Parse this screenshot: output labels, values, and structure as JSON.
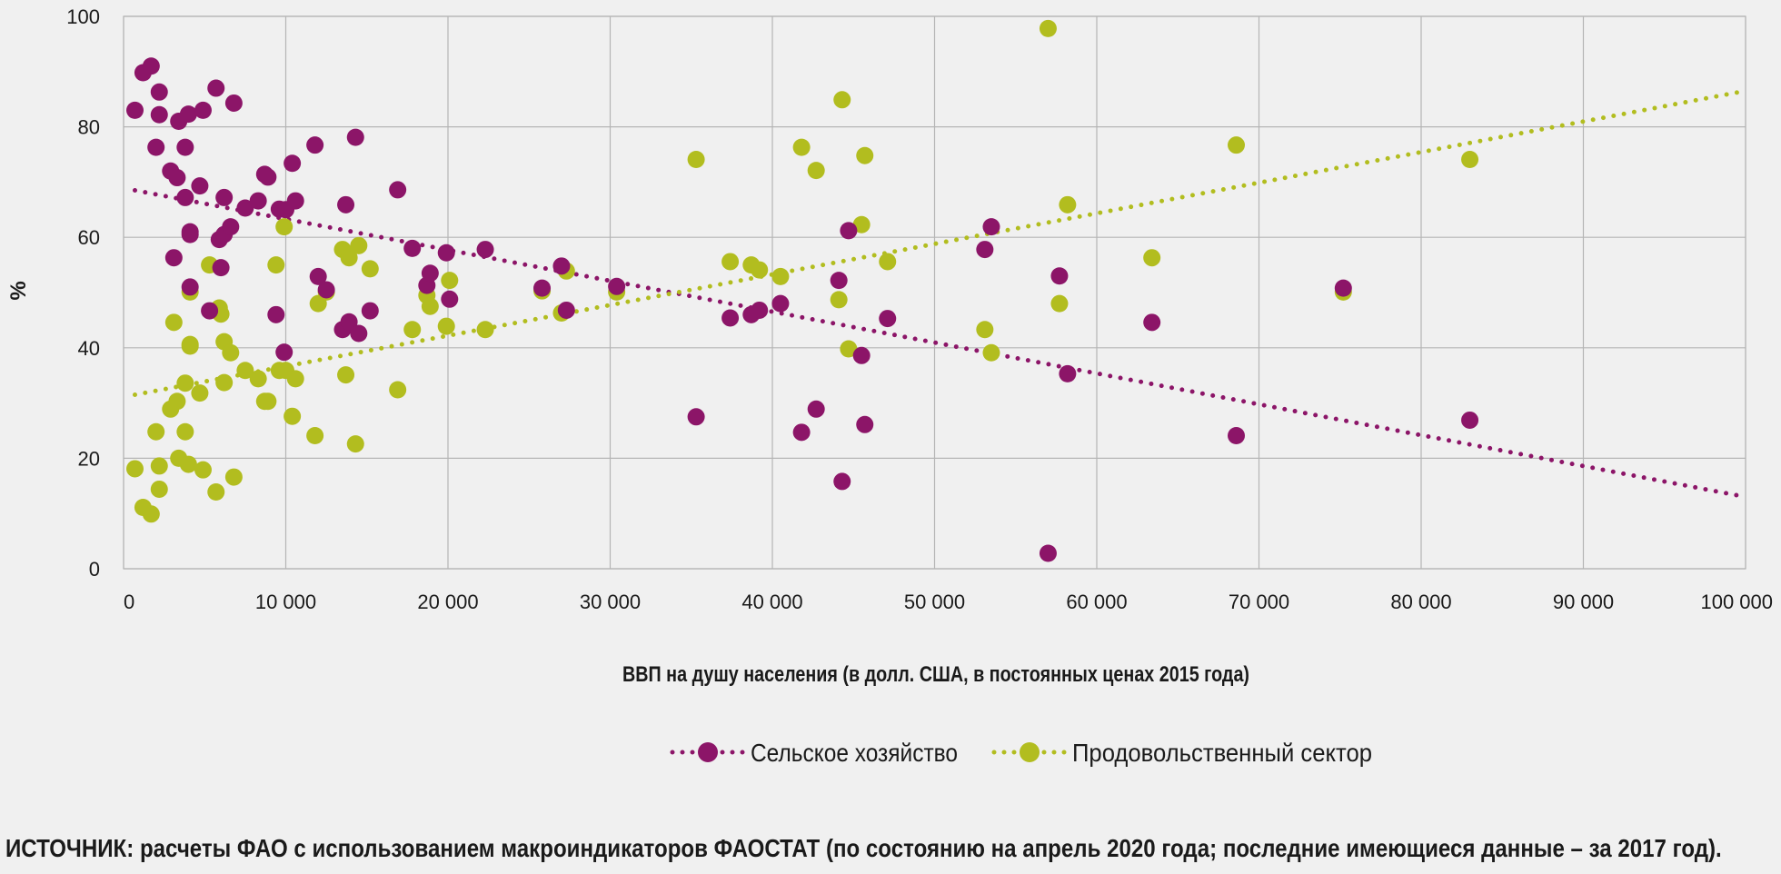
{
  "colors": {
    "agriculture": "#8c1568",
    "food_sector": "#b2bd1f",
    "grid": "#b5b5b5"
  },
  "legend": {
    "agriculture": "Сельское хозяйство",
    "food_sector": "Продовольственный сектор"
  },
  "source": "ИСТОЧНИК: расчеты ФАО с использованием макроиндикаторов ФАОСТАТ (по состоянию на апрель 2020 года; последние имеющиеся данные – за 2017 год).",
  "chart_data": {
    "type": "scatter",
    "title": "",
    "xlabel": "ВВП на душу населения (в долл. США, в постоянных ценах 2015 года)",
    "ylabel": "%",
    "xlim": [
      0,
      100000
    ],
    "ylim": [
      0,
      100
    ],
    "xticks": [
      0,
      10000,
      20000,
      30000,
      40000,
      50000,
      60000,
      70000,
      80000,
      90000,
      100000
    ],
    "xtick_labels": [
      "0",
      "10 000",
      "20 000",
      "30 000",
      "40 000",
      "50 000",
      "60 000",
      "70 000",
      "80 000",
      "90 000",
      "100 000"
    ],
    "yticks": [
      0,
      20,
      40,
      60,
      80,
      100
    ],
    "ytick_labels": [
      "0",
      "20",
      "40",
      "60",
      "80",
      "100"
    ],
    "grid": true,
    "legend_position": "bottom",
    "series": [
      {
        "name": "Сельское хозяйство",
        "color": "#8c1568",
        "trend": {
          "x": [
            700,
            100000
          ],
          "y": [
            68.5,
            13
          ]
        },
        "points": [
          [
            700,
            83
          ],
          [
            1200,
            89.8
          ],
          [
            1700,
            91
          ],
          [
            2000,
            76.3
          ],
          [
            2200,
            86.3
          ],
          [
            2200,
            82.2
          ],
          [
            2900,
            72
          ],
          [
            3100,
            56.3
          ],
          [
            3300,
            70.8
          ],
          [
            3400,
            81
          ],
          [
            3800,
            76.3
          ],
          [
            3800,
            67.2
          ],
          [
            4000,
            82.3
          ],
          [
            4100,
            61
          ],
          [
            4100,
            60.5
          ],
          [
            4100,
            51
          ],
          [
            4700,
            69.3
          ],
          [
            4900,
            83
          ],
          [
            5300,
            46.7
          ],
          [
            5700,
            87
          ],
          [
            5900,
            59.6
          ],
          [
            6000,
            54.5
          ],
          [
            6200,
            67.2
          ],
          [
            6200,
            60.5
          ],
          [
            6600,
            61.9
          ],
          [
            6800,
            84.3
          ],
          [
            7500,
            65.3
          ],
          [
            8300,
            66.6
          ],
          [
            8700,
            71.4
          ],
          [
            8900,
            70.9
          ],
          [
            9400,
            46
          ],
          [
            9600,
            65.1
          ],
          [
            9900,
            39.2
          ],
          [
            10000,
            65
          ],
          [
            10400,
            73.4
          ],
          [
            10600,
            66.6
          ],
          [
            11800,
            76.7
          ],
          [
            12000,
            52.9
          ],
          [
            12500,
            50.5
          ],
          [
            13500,
            43.3
          ],
          [
            13700,
            65.9
          ],
          [
            13900,
            44.7
          ],
          [
            14300,
            78.1
          ],
          [
            14500,
            42.6
          ],
          [
            15200,
            46.7
          ],
          [
            16900,
            68.6
          ],
          [
            17800,
            58
          ],
          [
            18700,
            51.3
          ],
          [
            18900,
            53.5
          ],
          [
            19900,
            57.2
          ],
          [
            20100,
            48.8
          ],
          [
            22300,
            57.8
          ],
          [
            25800,
            50.8
          ],
          [
            27000,
            54.8
          ],
          [
            27300,
            46.8
          ],
          [
            30400,
            51.1
          ],
          [
            35300,
            27.5
          ],
          [
            37400,
            45.4
          ],
          [
            38700,
            46
          ],
          [
            39200,
            46.8
          ],
          [
            40500,
            48
          ],
          [
            41800,
            24.7
          ],
          [
            42700,
            28.9
          ],
          [
            44100,
            52.2
          ],
          [
            44300,
            15.8
          ],
          [
            44700,
            61.2
          ],
          [
            45500,
            38.6
          ],
          [
            45700,
            26.1
          ],
          [
            47100,
            45.3
          ],
          [
            53100,
            57.8
          ],
          [
            53500,
            61.9
          ],
          [
            57000,
            2.8
          ],
          [
            57700,
            53
          ],
          [
            58200,
            35.3
          ],
          [
            63400,
            44.6
          ],
          [
            68600,
            24.1
          ],
          [
            75200,
            50.8
          ],
          [
            83000,
            26.9
          ]
        ]
      },
      {
        "name": "Продовольственный сектор",
        "color": "#b2bd1f",
        "trend": {
          "x": [
            700,
            100000
          ],
          "y": [
            31.5,
            86.5
          ]
        },
        "points": [
          [
            700,
            18.1
          ],
          [
            1200,
            11.1
          ],
          [
            1700,
            9.9
          ],
          [
            2000,
            24.8
          ],
          [
            2200,
            18.6
          ],
          [
            2200,
            14.4
          ],
          [
            2900,
            28.9
          ],
          [
            3100,
            44.6
          ],
          [
            3300,
            30.3
          ],
          [
            3400,
            20
          ],
          [
            3800,
            24.8
          ],
          [
            3800,
            33.6
          ],
          [
            4000,
            18.9
          ],
          [
            4100,
            50.1
          ],
          [
            4100,
            40.3
          ],
          [
            4100,
            40.6
          ],
          [
            4700,
            31.8
          ],
          [
            4900,
            17.9
          ],
          [
            5300,
            55
          ],
          [
            5700,
            13.9
          ],
          [
            5900,
            47.2
          ],
          [
            6000,
            46.1
          ],
          [
            6200,
            33.7
          ],
          [
            6200,
            41.1
          ],
          [
            6600,
            39.1
          ],
          [
            6800,
            16.6
          ],
          [
            7500,
            35.9
          ],
          [
            8300,
            34.4
          ],
          [
            8700,
            30.3
          ],
          [
            8900,
            30.3
          ],
          [
            9400,
            55
          ],
          [
            9600,
            35.9
          ],
          [
            9900,
            61.9
          ],
          [
            10000,
            35.9
          ],
          [
            10400,
            27.6
          ],
          [
            10600,
            34.4
          ],
          [
            11800,
            24.1
          ],
          [
            12000,
            48
          ],
          [
            12500,
            50.1
          ],
          [
            13500,
            57.8
          ],
          [
            13700,
            35.1
          ],
          [
            13900,
            56.3
          ],
          [
            14300,
            22.6
          ],
          [
            14500,
            58.5
          ],
          [
            15200,
            54.3
          ],
          [
            16900,
            32.4
          ],
          [
            17800,
            43.3
          ],
          [
            18700,
            49.5
          ],
          [
            18900,
            47.5
          ],
          [
            19900,
            43.9
          ],
          [
            20100,
            52.2
          ],
          [
            22300,
            43.3
          ],
          [
            25800,
            50.3
          ],
          [
            27000,
            46.3
          ],
          [
            27300,
            53.9
          ],
          [
            30400,
            50.1
          ],
          [
            35300,
            74.1
          ],
          [
            37400,
            55.6
          ],
          [
            38700,
            55
          ],
          [
            39200,
            54.1
          ],
          [
            40500,
            52.9
          ],
          [
            41800,
            76.3
          ],
          [
            42700,
            72.1
          ],
          [
            44100,
            48.7
          ],
          [
            44300,
            84.9
          ],
          [
            44700,
            39.8
          ],
          [
            45500,
            62.3
          ],
          [
            45700,
            74.8
          ],
          [
            47100,
            55.6
          ],
          [
            53100,
            43.3
          ],
          [
            53500,
            39.1
          ],
          [
            57000,
            97.8
          ],
          [
            57700,
            48
          ],
          [
            58200,
            65.9
          ],
          [
            63400,
            56.3
          ],
          [
            68600,
            76.7
          ],
          [
            75200,
            50.1
          ],
          [
            83000,
            74.1
          ]
        ]
      }
    ]
  }
}
